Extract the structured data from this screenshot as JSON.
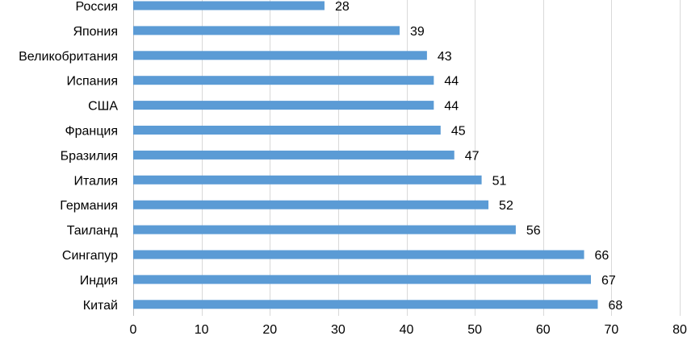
{
  "chart_data": {
    "type": "bar",
    "orientation": "horizontal",
    "categories": [
      "Россия",
      "Япония",
      "Великобритания",
      "Испания",
      "США",
      "Франция",
      "Бразилия",
      "Италия",
      "Германия",
      "Таиланд",
      "Сингапур",
      "Индия",
      "Китай"
    ],
    "values": [
      28,
      39,
      43,
      44,
      44,
      45,
      47,
      51,
      52,
      56,
      66,
      67,
      68
    ],
    "xlim": [
      0,
      80
    ],
    "x_ticks": [
      0,
      10,
      20,
      30,
      40,
      50,
      60,
      70,
      80
    ],
    "grid": "vertical",
    "legend": "none",
    "data_labels": true,
    "title": "",
    "xlabel": "",
    "ylabel": "",
    "bar_color": "#5b9bd5"
  }
}
